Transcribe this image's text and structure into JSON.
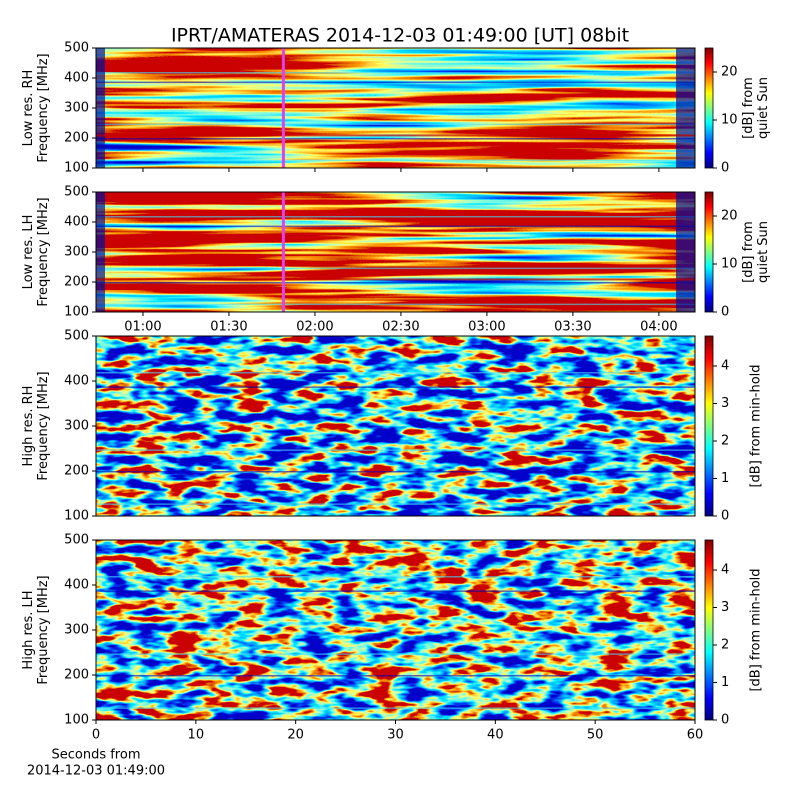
{
  "title": "IPRT/AMATERAS 2014-12-03 01:49:00 [UT]   08bit",
  "chart_data": [
    {
      "type": "heatmap",
      "ylabel": [
        "Low res. RH",
        "Frequency [MHz]"
      ],
      "ylim": [
        100,
        500
      ],
      "yticks": [
        100,
        200,
        300,
        400,
        500
      ],
      "xlim": [
        0.727,
        4.21
      ],
      "marker_x": 1.8167,
      "colorbar_label": [
        "[dB] from",
        "quiet Sun"
      ],
      "clim": [
        0,
        25
      ],
      "cticks": [
        0,
        10,
        20
      ]
    },
    {
      "type": "heatmap",
      "ylabel": [
        "Low res. LH",
        "Frequency [MHz]"
      ],
      "ylim": [
        100,
        500
      ],
      "yticks": [
        100,
        200,
        300,
        400,
        500
      ],
      "xlim": [
        0.727,
        4.21
      ],
      "marker_x": 1.8167,
      "xticks": [
        {
          "value": 1,
          "label": "01:00"
        },
        {
          "value": 1.5,
          "label": "01:30"
        },
        {
          "value": 2,
          "label": "02:00"
        },
        {
          "value": 2.5,
          "label": "02:30"
        },
        {
          "value": 3,
          "label": "03:00"
        },
        {
          "value": 3.5,
          "label": "03:30"
        },
        {
          "value": 4,
          "label": "04:00"
        }
      ],
      "colorbar_label": [
        "[dB] from",
        "quiet Sun"
      ],
      "clim": [
        0,
        25
      ],
      "cticks": [
        0,
        10,
        20
      ]
    },
    {
      "type": "heatmap",
      "ylabel": [
        "High res. RH",
        "Frequency [MHz]"
      ],
      "ylim": [
        100,
        500
      ],
      "yticks": [
        100,
        200,
        300,
        400,
        500
      ],
      "xlim": [
        0,
        60
      ],
      "colorbar_label": [
        "[dB] from min-hold"
      ],
      "clim": [
        0,
        4.8
      ],
      "cticks": [
        0,
        1,
        2,
        3,
        4
      ]
    },
    {
      "type": "heatmap",
      "ylabel": [
        "High res. LH",
        "Frequency [MHz]"
      ],
      "ylim": [
        100,
        500
      ],
      "yticks": [
        100,
        200,
        300,
        400,
        500
      ],
      "xlim": [
        0,
        60
      ],
      "xticks": [
        0,
        10,
        20,
        30,
        40,
        50,
        60
      ],
      "xlabel": [
        "Seconds from",
        "2014-12-03 01:49:00"
      ],
      "colorbar_label": [
        "[dB] from min-hold"
      ],
      "clim": [
        0,
        4.8
      ],
      "cticks": [
        0,
        1,
        2,
        3,
        4
      ]
    }
  ]
}
